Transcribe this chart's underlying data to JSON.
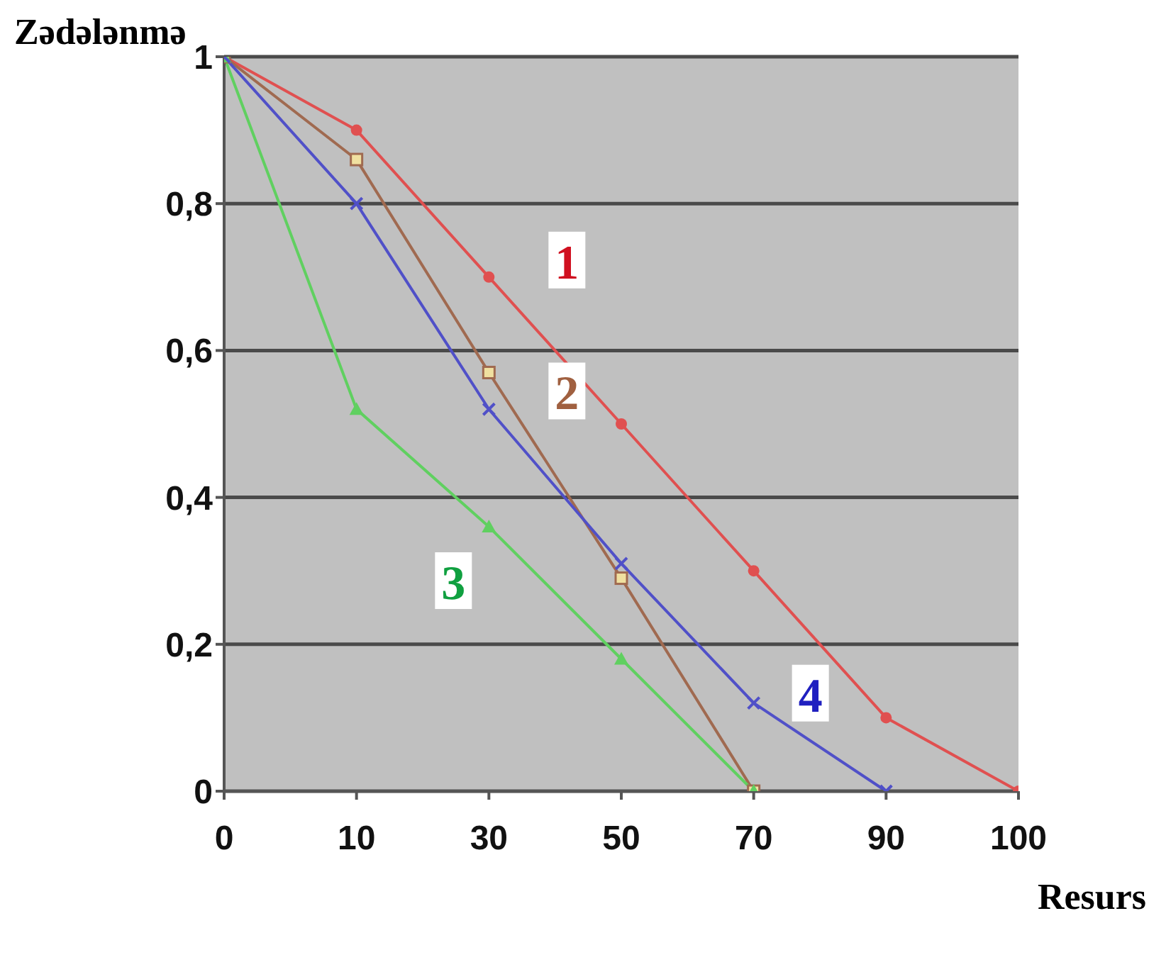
{
  "chart_data": {
    "type": "line",
    "xlabel": "Resurs",
    "ylabel": "Zədələnmə",
    "categories": [
      "0",
      "10",
      "30",
      "50",
      "70",
      "90",
      "100"
    ],
    "ylim": [
      0,
      1
    ],
    "yticks": [
      0,
      {
        "value": 0.2,
        "label": "0,2"
      },
      {
        "value": 0.4,
        "label": "0,4"
      },
      {
        "value": 0.6,
        "label": "0,6"
      },
      {
        "value": 0.8,
        "label": "0,8"
      },
      1
    ],
    "grid": "y",
    "series": [
      {
        "name": "1",
        "color": "#e05050",
        "marker": "circle",
        "values": [
          1,
          0.9,
          0.7,
          0.5,
          0.3,
          0.1,
          0
        ]
      },
      {
        "name": "2",
        "color": "#a06a50",
        "marker": "square",
        "values": [
          1,
          0.86,
          0.57,
          0.29,
          0,
          null,
          null
        ]
      },
      {
        "name": "3",
        "color": "#60d060",
        "marker": "triangle",
        "values": [
          1,
          0.52,
          0.36,
          0.18,
          0,
          null,
          null
        ]
      },
      {
        "name": "4",
        "color": "#5050c8",
        "marker": "cross",
        "values": [
          1,
          0.8,
          0.52,
          0.31,
          0.12,
          0,
          null
        ]
      }
    ]
  }
}
